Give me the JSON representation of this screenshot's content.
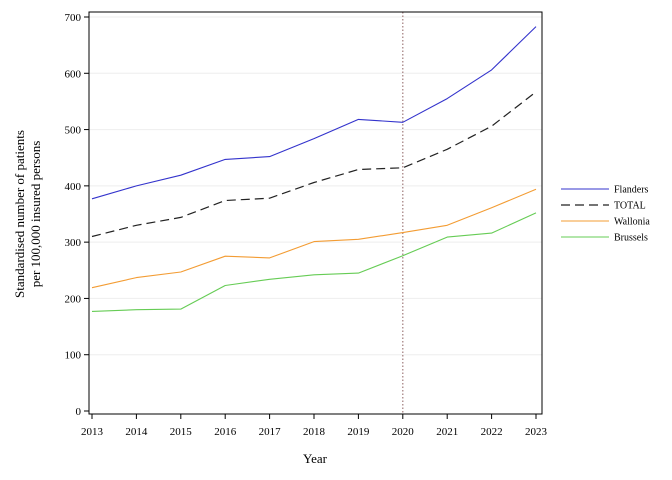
{
  "chart_data": {
    "type": "line",
    "title": "",
    "xlabel": "Year",
    "ylabel_lines": [
      "Standardised number of patients",
      "per 100,000 insured persons"
    ],
    "x": [
      2013,
      2014,
      2015,
      2016,
      2017,
      2018,
      2019,
      2020,
      2021,
      2022,
      2023
    ],
    "xlim": [
      2013,
      2023
    ],
    "ylim": [
      0,
      700
    ],
    "y_ticks": [
      0,
      100,
      200,
      300,
      400,
      500,
      600,
      700
    ],
    "grid": "horizontal",
    "legend_position": "right",
    "reference_line": {
      "x": 2020,
      "style": "dotted",
      "color": "#a07a7a"
    },
    "series": [
      {
        "name": "Flanders",
        "color": "#3333cc",
        "dash": "solid",
        "values": [
          377,
          400,
          419,
          447,
          452,
          484,
          518,
          513,
          555,
          606,
          683
        ]
      },
      {
        "name": "TOTAL",
        "color": "#222222",
        "dash": "dashed",
        "values": [
          310,
          330,
          344,
          374,
          378,
          406,
          429,
          432,
          465,
          506,
          567
        ]
      },
      {
        "name": "Wallonia",
        "color": "#f39c33",
        "dash": "solid",
        "values": [
          219,
          237,
          247,
          275,
          272,
          301,
          305,
          317,
          330,
          361,
          394
        ]
      },
      {
        "name": "Brussels",
        "color": "#66cc55",
        "dash": "solid",
        "values": [
          177,
          180,
          181,
          223,
          234,
          242,
          245,
          276,
          309,
          316,
          352
        ]
      }
    ]
  }
}
